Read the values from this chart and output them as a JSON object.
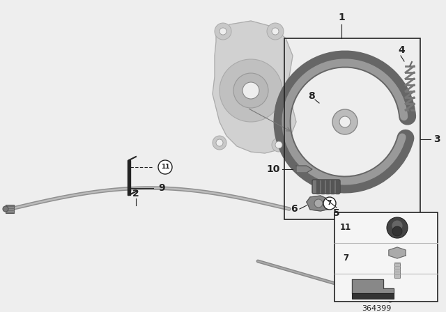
{
  "bg_color": "#eeeeee",
  "part_number": "364399",
  "line_color": "#222222",
  "dark_grey": "#555555",
  "mid_grey": "#888888",
  "light_grey": "#c8c8c8",
  "very_light_grey": "#dddddd",
  "white": "#ffffff",
  "knuckle_color": "#d0d0d0",
  "shoe_outer_color": "#666666",
  "shoe_inner_color": "#999999",
  "cable_color": "#909090",
  "cable_highlight": "#bbbbbb",
  "figw": 6.4,
  "figh": 4.48,
  "dpi": 100
}
